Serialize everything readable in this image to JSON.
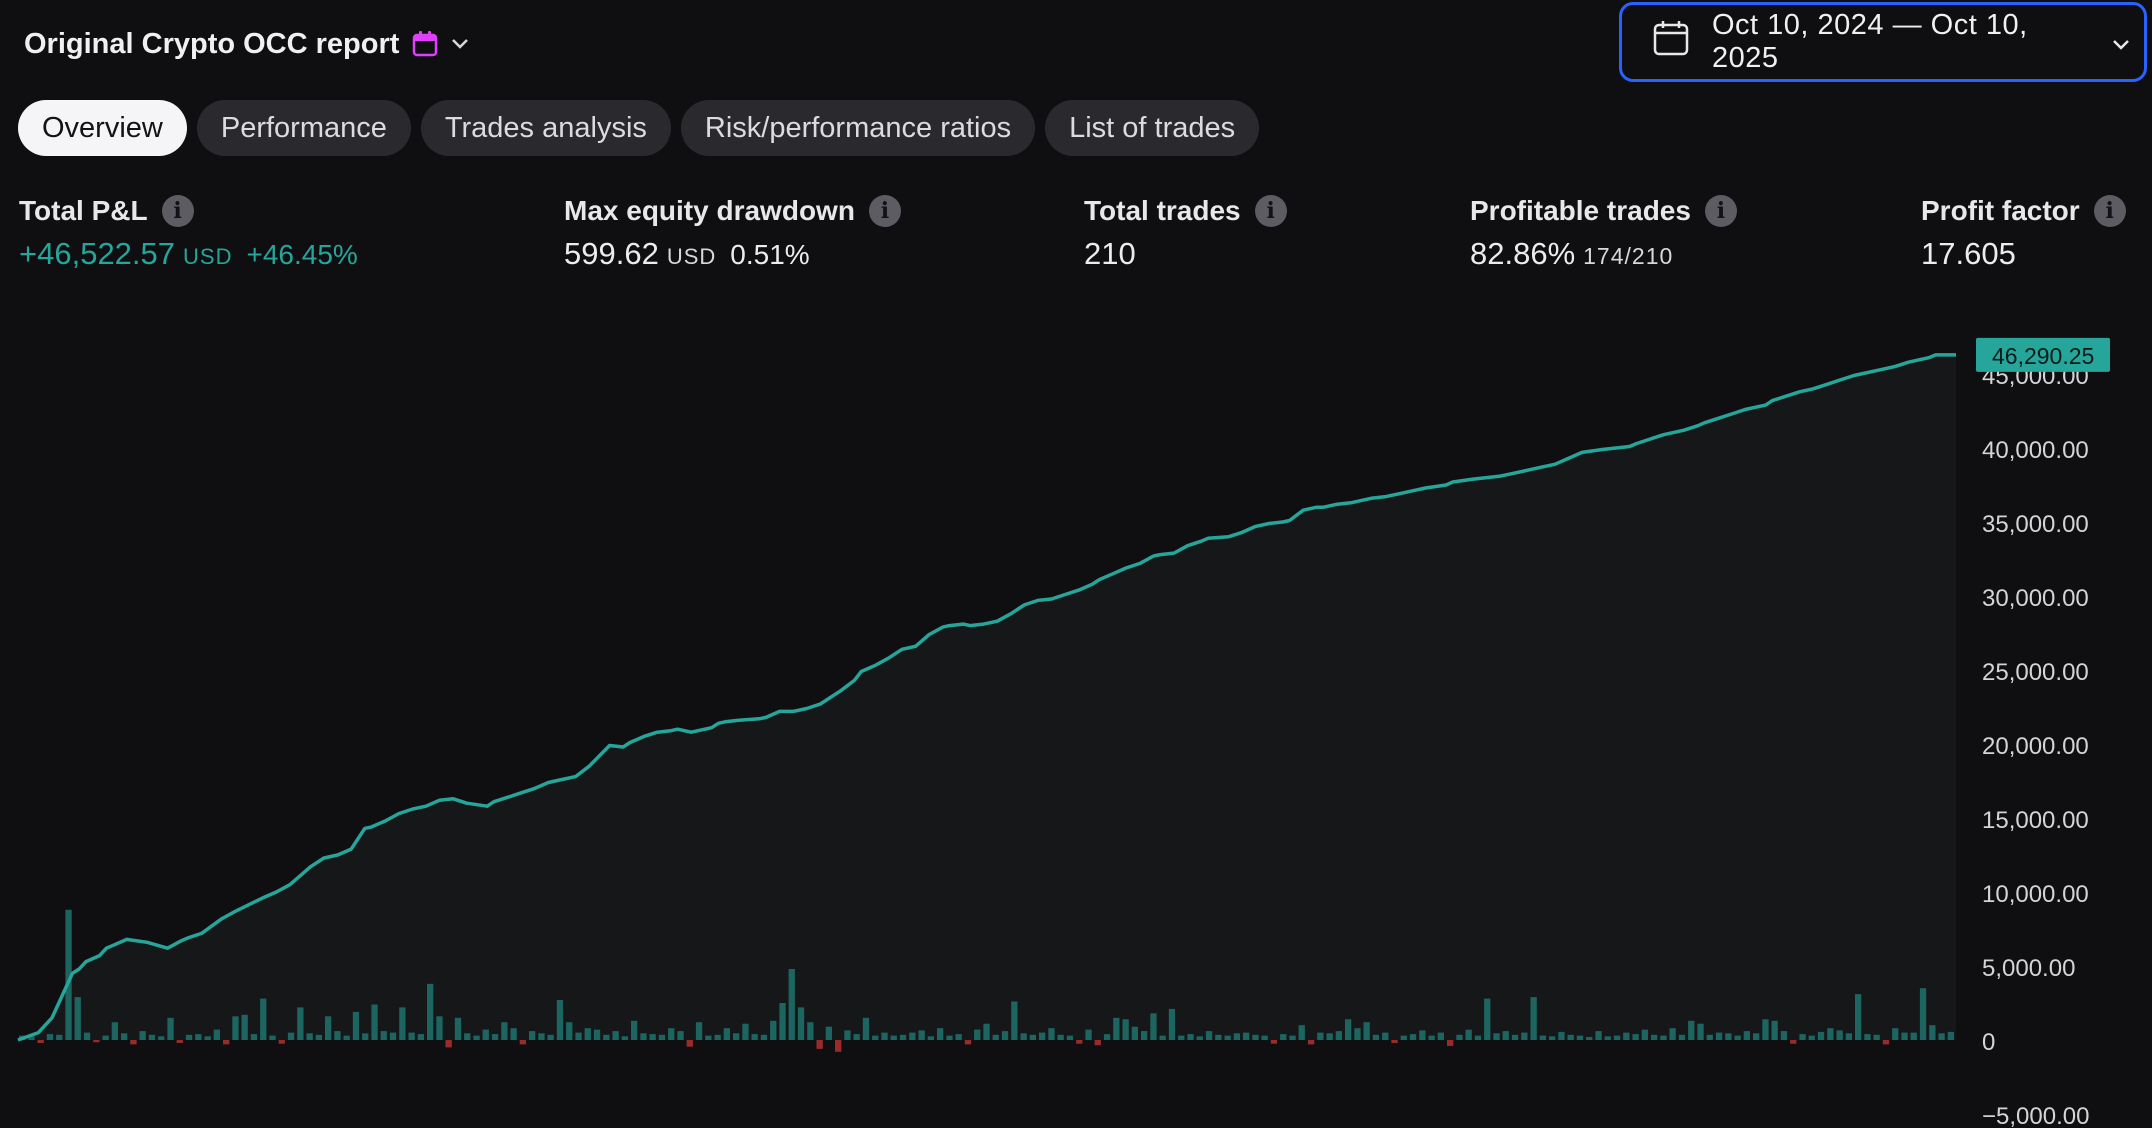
{
  "header": {
    "title": "Original Crypto OCC report",
    "title_icon": "calendar-icon",
    "date_range": "Oct 10, 2024 — Oct 10, 2025"
  },
  "tabs": [
    {
      "label": "Overview",
      "active": true
    },
    {
      "label": "Performance",
      "active": false
    },
    {
      "label": "Trades analysis",
      "active": false
    },
    {
      "label": "Risk/performance ratios",
      "active": false
    },
    {
      "label": "List of trades",
      "active": false
    }
  ],
  "metrics": {
    "total_pnl": {
      "label": "Total P&L",
      "value": "+46,522.57",
      "unit": "USD",
      "percent": "+46.45%"
    },
    "max_drawdown": {
      "label": "Max equity drawdown",
      "value": "599.62",
      "unit": "USD",
      "percent": "0.51%"
    },
    "total_trades": {
      "label": "Total trades",
      "value": "210"
    },
    "profitable_trades": {
      "label": "Profitable trades",
      "value": "82.86%",
      "detail": "174/210"
    },
    "profit_factor": {
      "label": "Profit factor",
      "value": "17.605"
    }
  },
  "colors": {
    "background": "#0f0f12",
    "accent_positive": "#26a69a",
    "accent_negative": "#ef5350",
    "selection_border": "#2962ff"
  },
  "chart_data": {
    "type": "line",
    "title": "",
    "last_value_label": "46,290.25",
    "y_ticks": [
      "45,000.00",
      "40,000.00",
      "35,000.00",
      "30,000.00",
      "25,000.00",
      "20,000.00",
      "15,000.00",
      "10,000.00",
      "5,000.00",
      "0",
      "−5,000.00"
    ],
    "ylim": [
      -5000,
      48000
    ],
    "grid": false,
    "series": [
      {
        "type": "line",
        "x": [
          0,
          15,
          25,
          40,
          45,
          50,
          55,
          60,
          65,
          70,
          80,
          95,
          110,
          120,
          125,
          135,
          150,
          160,
          180,
          190,
          200,
          205,
          210,
          215,
          225,
          235,
          245,
          255,
          260,
          270,
          280,
          290,
          300,
          310,
          320,
          330,
          345,
          350,
          360,
          370,
          380,
          390,
          400,
          410,
          420,
          435,
          445,
          450,
          455,
          460,
          470,
          480,
          485,
          495,
          510,
          515,
          520,
          530,
          545,
          550,
          555,
          560,
          570,
          580,
          590,
          605,
          615,
          620,
          630,
          640,
          650,
          660,
          670,
          680,
          685,
          695,
          700,
          710,
          720,
          730,
          740,
          750,
          760,
          770,
          780,
          790,
          795,
          805,
          815,
          825,
          835,
          840,
          850,
          860,
          870,
          875,
          890,
          900,
          910,
          920,
          930,
          935,
          945,
          955,
          960,
          970,
          980,
          990,
          995,
          1005,
          1015,
          1025,
          1035,
          1050,
          1055,
          1070,
          1080,
          1090,
          1100,
          1110,
          1120,
          1130,
          1140,
          1150,
          1165,
          1175,
          1185,
          1190,
          1200,
          1210,
          1225,
          1235,
          1240,
          1250,
          1260,
          1270,
          1285,
          1290,
          1300,
          1310,
          1320,
          1330,
          1340,
          1350,
          1370,
          1380,
          1390,
          1400,
          1405,
          1410,
          1420,
          1425
        ],
        "y": [
          0,
          500,
          1500,
          4500,
          4800,
          5300,
          5500,
          5700,
          6200,
          6400,
          6800,
          6600,
          6200,
          6700,
          6900,
          7200,
          8200,
          8700,
          9600,
          10000,
          10500,
          10900,
          11300,
          11700,
          12300,
          12500,
          12900,
          14300,
          14400,
          14800,
          15300,
          15600,
          15800,
          16200,
          16300,
          16000,
          15800,
          16100,
          16400,
          16700,
          17000,
          17400,
          17600,
          17800,
          18500,
          19900,
          19800,
          20100,
          20300,
          20500,
          20800,
          20900,
          21000,
          20800,
          21100,
          21400,
          21500,
          21600,
          21700,
          21800,
          22000,
          22200,
          22200,
          22400,
          22700,
          23600,
          24300,
          24900,
          25300,
          25800,
          26400,
          26600,
          27400,
          27900,
          28000,
          28100,
          28000,
          28100,
          28300,
          28800,
          29400,
          29700,
          29800,
          30100,
          30400,
          30800,
          31100,
          31500,
          31900,
          32200,
          32700,
          32800,
          32900,
          33400,
          33700,
          33900,
          34000,
          34300,
          34700,
          34900,
          35000,
          35100,
          35800,
          36000,
          36000,
          36200,
          36300,
          36500,
          36600,
          36700,
          36900,
          37100,
          37300,
          37500,
          37700,
          37900,
          38000,
          38100,
          38300,
          38500,
          38700,
          38900,
          39300,
          39700,
          39900,
          40000,
          40100,
          40300,
          40600,
          40900,
          41200,
          41500,
          41700,
          42000,
          42300,
          42600,
          42900,
          43200,
          43500,
          43800,
          44000,
          44300,
          44600,
          44900,
          45300,
          45500,
          45800,
          46000,
          46100,
          46290,
          46290,
          46290
        ]
      },
      {
        "type": "bar",
        "name": "",
        "description_values": "per-trade P&L bars along baseline (positive teal, negative red)",
        "values": [
          300,
          250,
          -200,
          400,
          350,
          8800,
          2900,
          500,
          -150,
          300,
          1200,
          450,
          -300,
          600,
          350,
          250,
          1500,
          -200,
          350,
          400,
          250,
          700,
          -300,
          1600,
          1700,
          400,
          2800,
          300,
          -250,
          500,
          2200,
          450,
          350,
          1600,
          600,
          300,
          1900,
          450,
          2400,
          600,
          500,
          2200,
          500,
          400,
          3800,
          1600,
          -500,
          1500,
          450,
          300,
          700,
          400,
          1200,
          800,
          -300,
          600,
          450,
          350,
          2700,
          1200,
          500,
          800,
          700,
          350,
          600,
          250,
          1300,
          450,
          400,
          350,
          800,
          600,
          -450,
          1200,
          300,
          350,
          800,
          450,
          1100,
          400,
          350,
          1300,
          2500,
          4800,
          2200,
          1200,
          -600,
          900,
          -800,
          650,
          400,
          1500,
          300,
          500,
          300,
          350,
          500,
          650,
          250,
          800,
          300,
          400,
          -300,
          700,
          1100,
          350,
          600,
          2600,
          450,
          350,
          500,
          800,
          350,
          300,
          -250,
          700,
          -350,
          400,
          1500,
          1400,
          900,
          600,
          1800,
          300,
          2100,
          300,
          400,
          250,
          600,
          350,
          300,
          450,
          500,
          350,
          300,
          -250,
          400,
          300,
          1000,
          -300,
          500,
          450,
          600,
          1400,
          800,
          1200,
          350,
          500,
          -200,
          300,
          400,
          650,
          300,
          500,
          -400,
          350,
          700,
          300,
          2800,
          450,
          600,
          350,
          500,
          2900,
          300,
          250,
          550,
          350,
          300,
          200,
          600,
          250,
          300,
          500,
          400,
          700,
          350,
          300,
          800,
          350,
          1300,
          1100,
          350,
          500,
          450,
          300,
          600,
          450,
          1400,
          1300,
          600,
          -250,
          400,
          300,
          550,
          800,
          650,
          450,
          3100,
          400,
          350,
          -300,
          800,
          500,
          500,
          3500,
          1000,
          450,
          550
        ]
      }
    ]
  }
}
